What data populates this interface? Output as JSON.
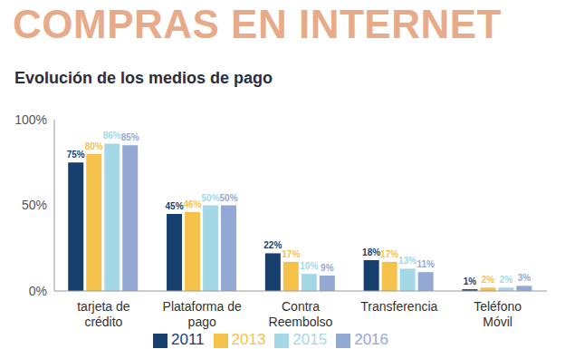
{
  "chart_data": {
    "type": "bar",
    "title": "COMPRAS EN INTERNET",
    "subtitle": "Evolución de los medios de pago",
    "categories": [
      "tarjeta de crédito",
      "Plataforma de pago",
      "Contra Reembolso",
      "Transferencia",
      "Teléfono Móvil"
    ],
    "series": [
      {
        "name": "2011",
        "color": "#173f6e",
        "values": [
          75,
          45,
          22,
          18,
          1
        ],
        "value_labels": [
          "75%",
          "45%",
          "22%",
          "18%",
          "1%"
        ]
      },
      {
        "name": "2013",
        "color": "#f5c24c",
        "values": [
          80,
          46,
          17,
          17,
          2
        ],
        "value_labels": [
          "80%",
          "46%",
          "17%",
          "17%",
          "2%"
        ]
      },
      {
        "name": "2015",
        "color": "#a5d8e6",
        "values": [
          86,
          50,
          10,
          13,
          2
        ],
        "value_labels": [
          "86%",
          "50%",
          "10%",
          "13%",
          "2%"
        ]
      },
      {
        "name": "2016",
        "color": "#94a8d4",
        "values": [
          85,
          50,
          9,
          11,
          3
        ],
        "value_labels": [
          "85%",
          "50%",
          "9%",
          "11%",
          "3%"
        ]
      }
    ],
    "ylim": [
      0,
      100
    ],
    "yticks": [
      {
        "value": 0,
        "label": "0%"
      },
      {
        "value": 50,
        "label": "50%"
      },
      {
        "value": 100,
        "label": "100%"
      }
    ],
    "grid": false,
    "legend": "bottom",
    "data_labels": true
  }
}
